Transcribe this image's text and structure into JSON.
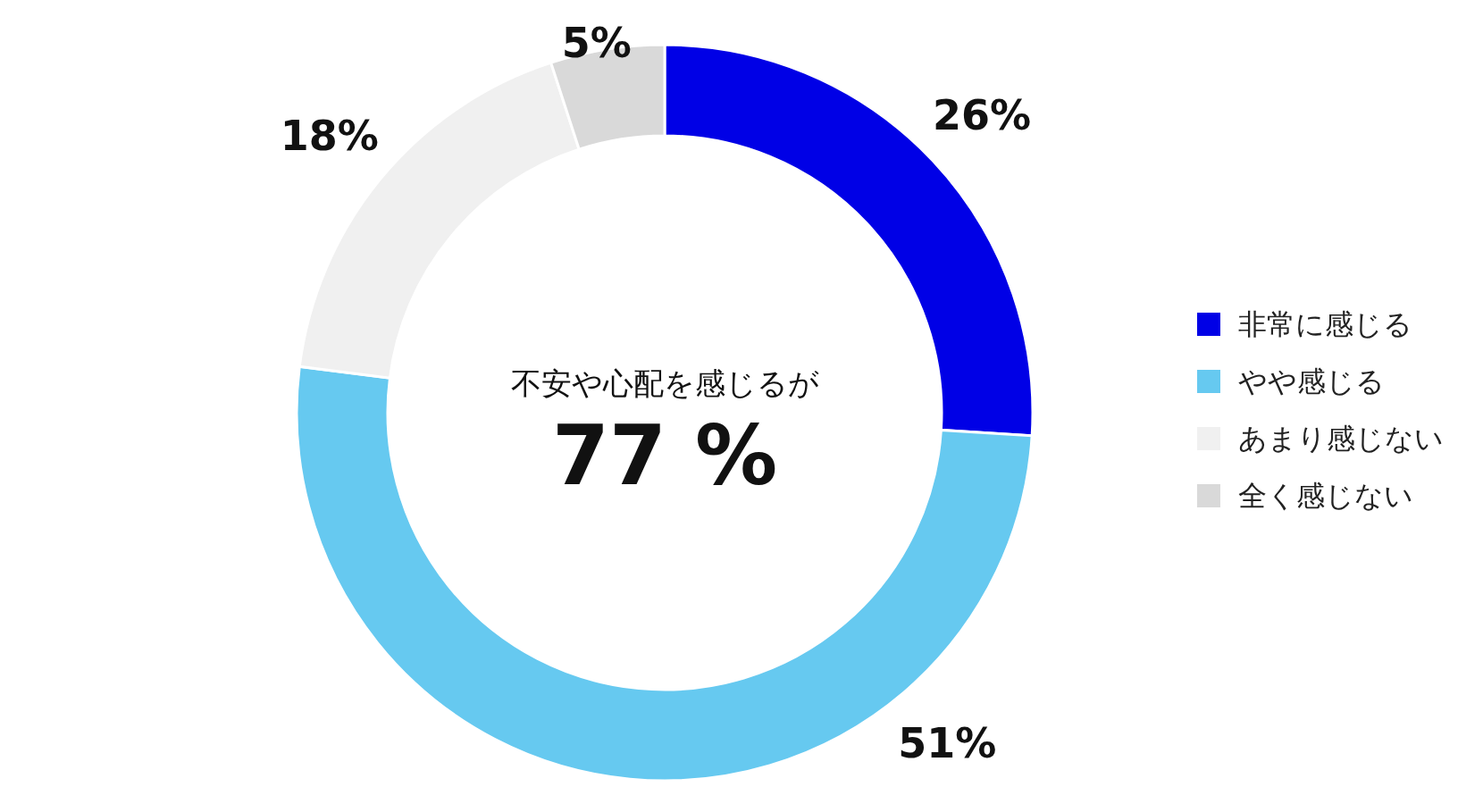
{
  "chart_data": {
    "type": "donut",
    "categories": [
      "非常に感じる",
      "やや感じる",
      "あまり感じない",
      "全く感じない"
    ],
    "values": [
      26,
      51,
      18,
      5
    ],
    "colors": [
      "#0000e6",
      "#66c9f0",
      "#f0f0f0",
      "#d9d9d9"
    ],
    "value_labels": [
      "26%",
      "51%",
      "18%",
      "5%"
    ],
    "annotations": [
      "不安や心配を感じるが",
      "77 %"
    ],
    "legend": "right"
  }
}
